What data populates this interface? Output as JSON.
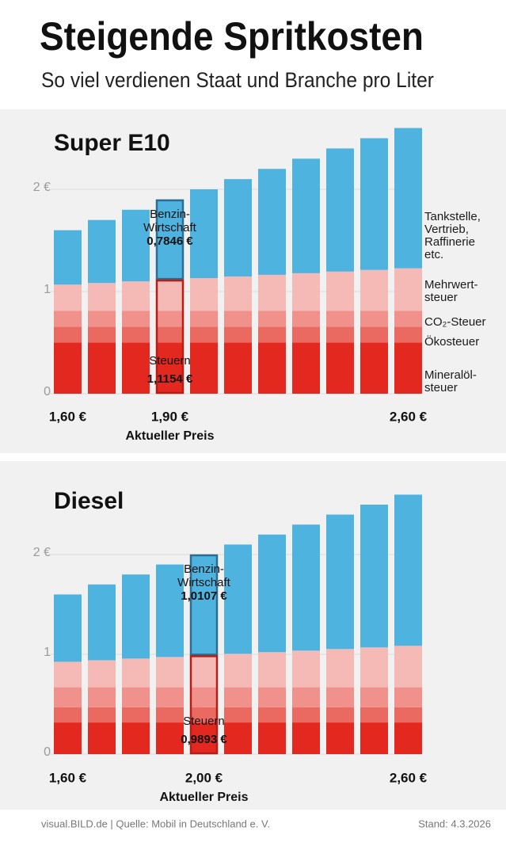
{
  "title": "Steigende Spritkosten",
  "subtitle": "So viel verdienen Staat und Branche pro Liter",
  "footer": {
    "source": "visual.BILD.de | Quelle: Mobil in Deutschland e. V.",
    "date": "Stand: 4.3.2026"
  },
  "chart_data": [
    {
      "type": "bar",
      "stacked": true,
      "title": "Super E10",
      "categories": [
        "1,60 €",
        null,
        null,
        "1,90 €",
        null,
        null,
        null,
        null,
        null,
        null,
        "2,60 €"
      ],
      "highlight": 3,
      "highlight_label": "Aktueller Preis",
      "annotations": {
        "wirtschaft_label": "Benzin-\nWirtschaft",
        "wirtschaft_value": "0,7846 €",
        "steuern_label": "Steuern",
        "steuern_value": "1,1154 €"
      },
      "ylim": [
        0,
        2.7
      ],
      "yticks": [
        0,
        1,
        {
          "value": 2,
          "label": "2 €"
        }
      ],
      "grid": true,
      "legend": "right",
      "series": [
        {
          "name": "Mineralöl-\nsteuer",
          "color": "#e3281f",
          "values": [
            0.501,
            0.501,
            0.501,
            0.501,
            0.501,
            0.501,
            0.501,
            0.501,
            0.501,
            0.501,
            0.501
          ]
        },
        {
          "name": "Ökosteuer",
          "color": "#ea6a62",
          "values": [
            0.1535,
            0.1535,
            0.1535,
            0.1535,
            0.1535,
            0.1535,
            0.1535,
            0.1535,
            0.1535,
            0.1535,
            0.1535
          ]
        },
        {
          "name": "CO₂-Steuer",
          "color": "#f0918c",
          "values": [
            0.1575,
            0.1575,
            0.1575,
            0.1575,
            0.1575,
            0.1575,
            0.1575,
            0.1575,
            0.1575,
            0.1575,
            0.1575
          ]
        },
        {
          "name": "Mehrwert-\nsteuer",
          "color": "#f5bab6",
          "values": [
            0.2555,
            0.2714,
            0.2874,
            0.3034,
            0.3193,
            0.3353,
            0.3513,
            0.3672,
            0.3832,
            0.3992,
            0.4151
          ]
        },
        {
          "name": "Tankstelle,\nVertrieb,\nRaffinerie\netc.",
          "color": "#4fb3e0",
          "values": [
            0.5325,
            0.6166,
            0.7006,
            0.7846,
            0.8687,
            0.9527,
            1.0367,
            1.1208,
            1.2048,
            1.2888,
            1.3729
          ]
        }
      ]
    },
    {
      "type": "bar",
      "stacked": true,
      "title": "Diesel",
      "categories": [
        "1,60 €",
        null,
        null,
        null,
        "2,00 €",
        null,
        null,
        null,
        null,
        null,
        "2,60 €"
      ],
      "highlight": 4,
      "highlight_label": "Aktueller Preis",
      "annotations": {
        "wirtschaft_label": "Benzin-\nWirtschaft",
        "wirtschaft_value": "1,0107 €",
        "steuern_label": "Steuern",
        "steuern_value": "0,9893 €"
      },
      "ylim": [
        0,
        2.7
      ],
      "yticks": [
        0,
        1,
        {
          "value": 2,
          "label": "2 €"
        }
      ],
      "grid": true,
      "series": [
        {
          "color": "#e3281f",
          "values": [
            0.317,
            0.317,
            0.317,
            0.317,
            0.317,
            0.317,
            0.317,
            0.317,
            0.317,
            0.317,
            0.317
          ]
        },
        {
          "color": "#ea6a62",
          "values": [
            0.1534,
            0.1534,
            0.1534,
            0.1534,
            0.1534,
            0.1534,
            0.1534,
            0.1534,
            0.1534,
            0.1534,
            0.1534
          ]
        },
        {
          "color": "#f0918c",
          "values": [
            0.1996,
            0.1996,
            0.1996,
            0.1996,
            0.1996,
            0.1996,
            0.1996,
            0.1996,
            0.1996,
            0.1996,
            0.1996
          ]
        },
        {
          "color": "#f5bab6",
          "values": [
            0.2555,
            0.2714,
            0.2874,
            0.3034,
            0.3193,
            0.3353,
            0.3513,
            0.3672,
            0.3832,
            0.3992,
            0.4151
          ]
        },
        {
          "color": "#4fb3e0",
          "values": [
            0.6745,
            0.7586,
            0.8426,
            0.9266,
            1.0107,
            1.0947,
            1.1787,
            1.2628,
            1.3468,
            1.4308,
            1.5149
          ]
        }
      ]
    }
  ]
}
